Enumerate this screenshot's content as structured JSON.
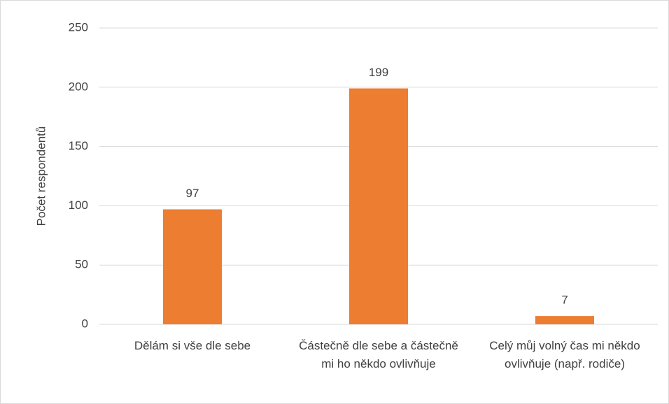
{
  "chart_data": {
    "type": "bar",
    "y_label": "Počet respondentů",
    "categories": [
      "Dělám si vše dle sebe",
      "Částečně dle sebe a částečně mi ho někdo ovlivňuje",
      "Celý můj volný čas mi někdo ovlivňuje (např. rodiče)"
    ],
    "values": [
      97,
      199,
      7
    ],
    "color": "#ed7d31",
    "ylim": [
      0,
      250
    ],
    "yticks": [
      0,
      50,
      100,
      150,
      200,
      250
    ],
    "grid": true
  }
}
